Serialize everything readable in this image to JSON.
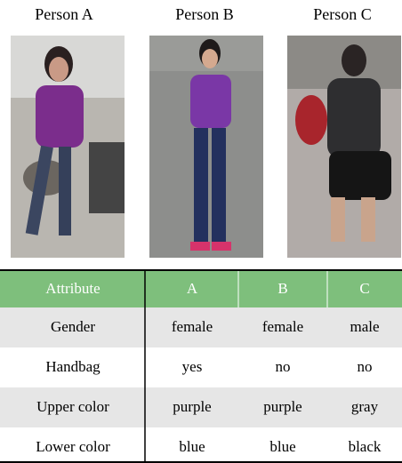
{
  "figure": {
    "persons": [
      "Person A",
      "Person B",
      "Person C"
    ]
  },
  "table": {
    "header": [
      "Attribute",
      "A",
      "B",
      "C"
    ],
    "rows": [
      [
        "Gender",
        "female",
        "female",
        "male"
      ],
      [
        "Handbag",
        "yes",
        "no",
        "no"
      ],
      [
        "Upper color",
        "purple",
        "purple",
        "gray"
      ],
      [
        "Lower color",
        "blue",
        "blue",
        "black"
      ]
    ]
  }
}
